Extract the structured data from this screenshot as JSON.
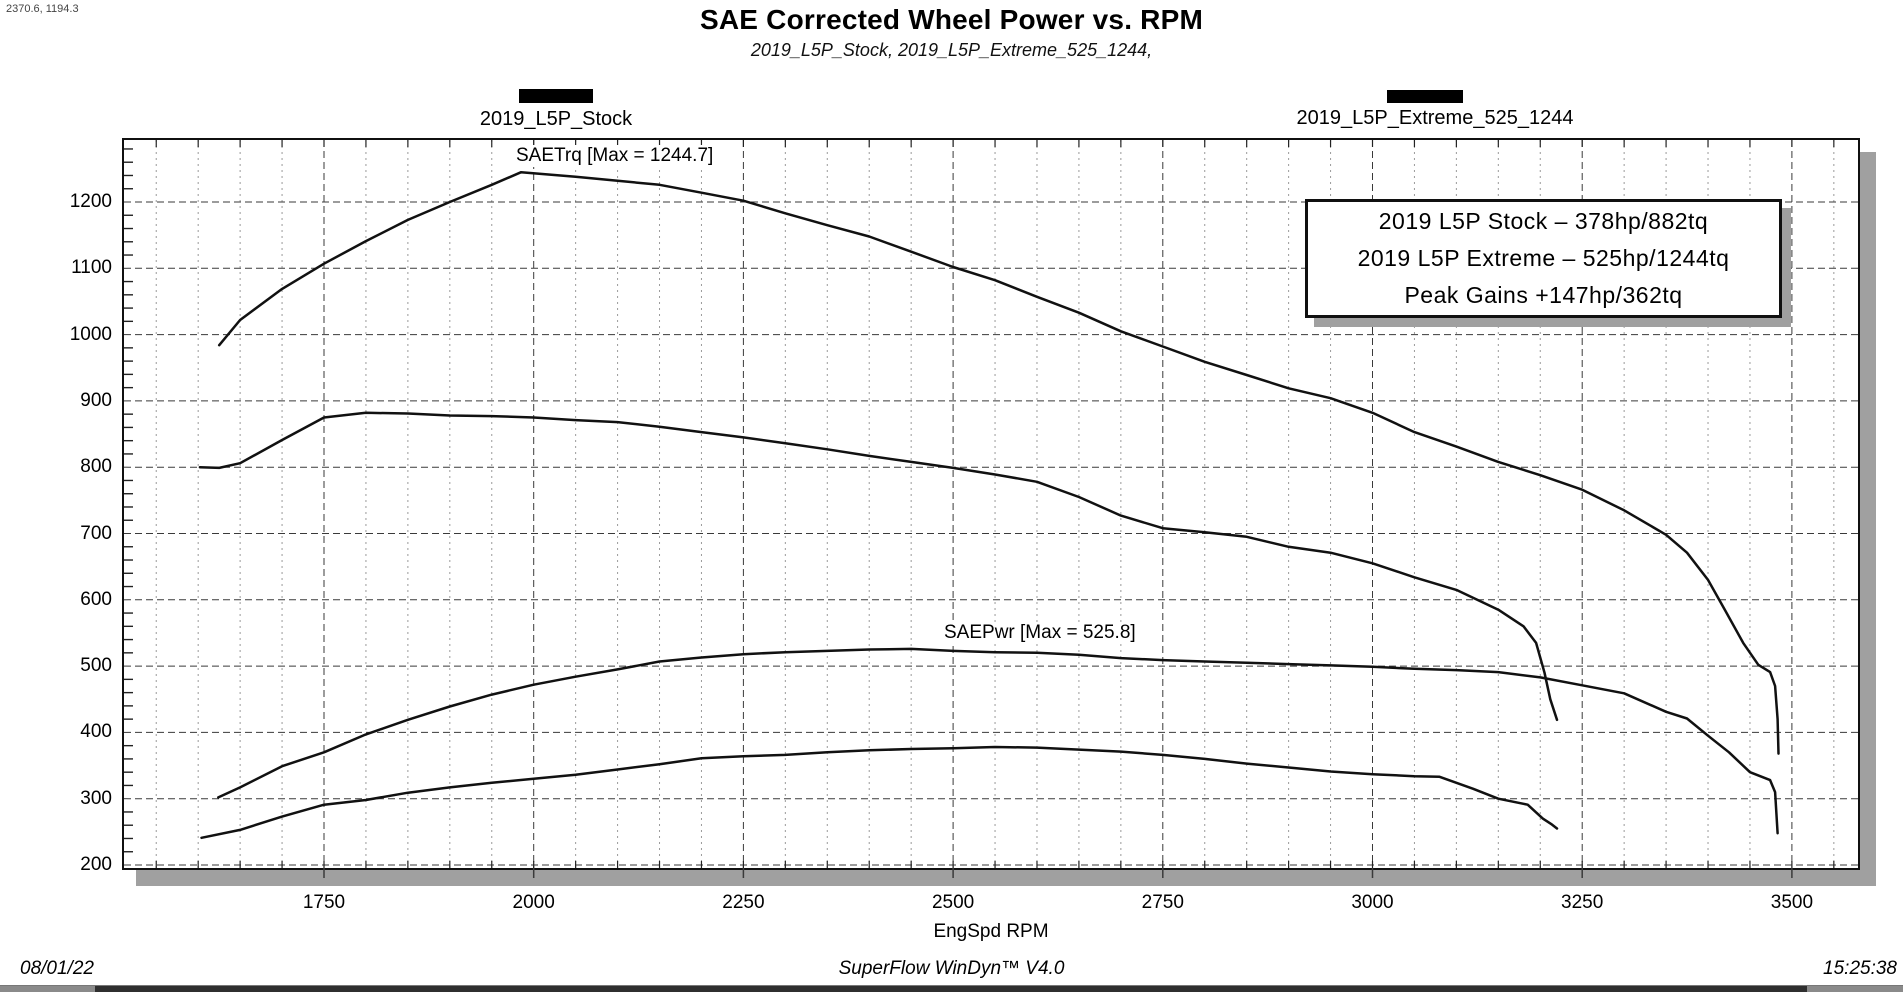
{
  "cursor_readout": "2370.6, 1194.3",
  "header": {
    "title": "SAE Corrected Wheel Power vs. RPM",
    "subtitle": "2019_L5P_Stock, 2019_L5P_Extreme_525_1244,"
  },
  "legend": [
    {
      "label": "2019_L5P_Stock"
    },
    {
      "label": "2019_L5P_Extreme_525_1244"
    }
  ],
  "annotations": {
    "torque_max_label": "SAETrq [Max = 1244.7]",
    "power_max_label": "SAEPwr [Max = 525.8]"
  },
  "info_box": {
    "lines": [
      "2019 L5P Stock – 378hp/882tq",
      "2019 L5P Extreme – 525hp/1244tq",
      "Peak Gains +147hp/362tq"
    ]
  },
  "footer": {
    "date": "08/01/22",
    "app": "SuperFlow WinDyn™ V4.0",
    "time": "15:25:38"
  },
  "colors": {
    "curve": "#111111",
    "grid_major": "#3a3a3a",
    "grid_minor": "#9a9a9a",
    "shadow": "#a0a0a0",
    "taskbar": "#2f2f2f"
  },
  "chart_data": {
    "type": "line",
    "title": "SAE Corrected Wheel Power vs. RPM",
    "xlabel": "EngSpd RPM",
    "ylabel": "",
    "grid": "dashed",
    "legend_position": "top",
    "x_ticks": [
      1750,
      2000,
      2250,
      2500,
      2750,
      3000,
      3250,
      3500
    ],
    "y_ticks": [
      1200,
      1100,
      1000,
      900,
      800,
      700,
      600,
      500,
      400,
      300,
      200
    ],
    "x_minor_step": 50,
    "y_minor_step": 20,
    "x_range": [
      1509,
      3581
    ],
    "y_range": [
      192,
      1296
    ],
    "series": [
      {
        "name": "2019_L5P_Extreme_525_1244 SAETrq",
        "peak": 1244.7,
        "points": [
          [
            1625,
            984
          ],
          [
            1650,
            1022
          ],
          [
            1700,
            1069
          ],
          [
            1750,
            1107
          ],
          [
            1800,
            1141
          ],
          [
            1850,
            1173
          ],
          [
            1900,
            1200
          ],
          [
            1950,
            1226
          ],
          [
            1985,
            1245
          ],
          [
            2050,
            1238
          ],
          [
            2100,
            1232
          ],
          [
            2150,
            1226
          ],
          [
            2200,
            1214
          ],
          [
            2250,
            1202
          ],
          [
            2300,
            1183
          ],
          [
            2350,
            1165
          ],
          [
            2400,
            1148
          ],
          [
            2450,
            1125
          ],
          [
            2500,
            1102
          ],
          [
            2550,
            1082
          ],
          [
            2600,
            1057
          ],
          [
            2650,
            1033
          ],
          [
            2700,
            1005
          ],
          [
            2750,
            982
          ],
          [
            2800,
            959
          ],
          [
            2850,
            939
          ],
          [
            2900,
            919
          ],
          [
            2950,
            904
          ],
          [
            3000,
            882
          ],
          [
            3050,
            853
          ],
          [
            3100,
            831
          ],
          [
            3150,
            808
          ],
          [
            3200,
            788
          ],
          [
            3250,
            766
          ],
          [
            3300,
            735
          ],
          [
            3350,
            698
          ],
          [
            3375,
            671
          ],
          [
            3400,
            630
          ],
          [
            3420,
            585
          ],
          [
            3442,
            535
          ],
          [
            3460,
            502
          ],
          [
            3474,
            491
          ],
          [
            3480,
            470
          ],
          [
            3483,
            420
          ],
          [
            3484,
            368
          ]
        ]
      },
      {
        "name": "2019_L5P_Stock SAETrq",
        "peak": 882,
        "points": [
          [
            1602,
            800
          ],
          [
            1625,
            799
          ],
          [
            1650,
            806
          ],
          [
            1700,
            841
          ],
          [
            1750,
            875
          ],
          [
            1800,
            882
          ],
          [
            1850,
            881
          ],
          [
            1900,
            878
          ],
          [
            1950,
            877
          ],
          [
            2000,
            875
          ],
          [
            2050,
            871
          ],
          [
            2100,
            868
          ],
          [
            2150,
            861
          ],
          [
            2200,
            853
          ],
          [
            2250,
            845
          ],
          [
            2300,
            836
          ],
          [
            2350,
            827
          ],
          [
            2400,
            817
          ],
          [
            2450,
            808
          ],
          [
            2500,
            799
          ],
          [
            2550,
            789
          ],
          [
            2600,
            778
          ],
          [
            2650,
            755
          ],
          [
            2700,
            727
          ],
          [
            2750,
            708
          ],
          [
            2800,
            702
          ],
          [
            2850,
            695
          ],
          [
            2900,
            680
          ],
          [
            2950,
            671
          ],
          [
            3000,
            655
          ],
          [
            3050,
            634
          ],
          [
            3100,
            615
          ],
          [
            3150,
            585
          ],
          [
            3180,
            560
          ],
          [
            3195,
            535
          ],
          [
            3205,
            490
          ],
          [
            3212,
            450
          ],
          [
            3220,
            419
          ]
        ]
      },
      {
        "name": "2019_L5P_Extreme_525_1244 SAEPwr",
        "peak": 525.8,
        "points": [
          [
            1624,
            302
          ],
          [
            1650,
            317
          ],
          [
            1700,
            349
          ],
          [
            1750,
            370
          ],
          [
            1800,
            397
          ],
          [
            1850,
            419
          ],
          [
            1900,
            439
          ],
          [
            1950,
            457
          ],
          [
            2000,
            472
          ],
          [
            2050,
            484
          ],
          [
            2100,
            495
          ],
          [
            2150,
            507
          ],
          [
            2200,
            513
          ],
          [
            2250,
            518
          ],
          [
            2300,
            521
          ],
          [
            2350,
            523
          ],
          [
            2400,
            525
          ],
          [
            2450,
            526
          ],
          [
            2500,
            523
          ],
          [
            2550,
            521
          ],
          [
            2600,
            520
          ],
          [
            2650,
            517
          ],
          [
            2700,
            512
          ],
          [
            2750,
            509
          ],
          [
            2800,
            507
          ],
          [
            2850,
            505
          ],
          [
            2900,
            503
          ],
          [
            2950,
            501
          ],
          [
            3000,
            499
          ],
          [
            3050,
            496
          ],
          [
            3100,
            494
          ],
          [
            3150,
            491
          ],
          [
            3200,
            483
          ],
          [
            3250,
            471
          ],
          [
            3300,
            459
          ],
          [
            3350,
            431
          ],
          [
            3375,
            421
          ],
          [
            3400,
            395
          ],
          [
            3425,
            370
          ],
          [
            3450,
            340
          ],
          [
            3474,
            328
          ],
          [
            3480,
            310
          ],
          [
            3483,
            248
          ]
        ]
      },
      {
        "name": "2019_L5P_Stock SAEPwr",
        "peak": 378,
        "points": [
          [
            1604,
            241
          ],
          [
            1650,
            253
          ],
          [
            1700,
            273
          ],
          [
            1750,
            291
          ],
          [
            1800,
            298
          ],
          [
            1850,
            309
          ],
          [
            1900,
            317
          ],
          [
            1950,
            324
          ],
          [
            2000,
            330
          ],
          [
            2050,
            336
          ],
          [
            2100,
            344
          ],
          [
            2150,
            352
          ],
          [
            2200,
            361
          ],
          [
            2250,
            364
          ],
          [
            2300,
            366
          ],
          [
            2350,
            370
          ],
          [
            2400,
            373
          ],
          [
            2450,
            375
          ],
          [
            2500,
            376
          ],
          [
            2550,
            378
          ],
          [
            2600,
            377
          ],
          [
            2650,
            374
          ],
          [
            2700,
            371
          ],
          [
            2750,
            366
          ],
          [
            2800,
            360
          ],
          [
            2850,
            353
          ],
          [
            2900,
            347
          ],
          [
            2950,
            341
          ],
          [
            3000,
            337
          ],
          [
            3050,
            334
          ],
          [
            3080,
            333
          ],
          [
            3120,
            315
          ],
          [
            3150,
            300
          ],
          [
            3185,
            291
          ],
          [
            3203,
            270
          ],
          [
            3214,
            261
          ],
          [
            3220,
            255
          ]
        ]
      }
    ]
  }
}
